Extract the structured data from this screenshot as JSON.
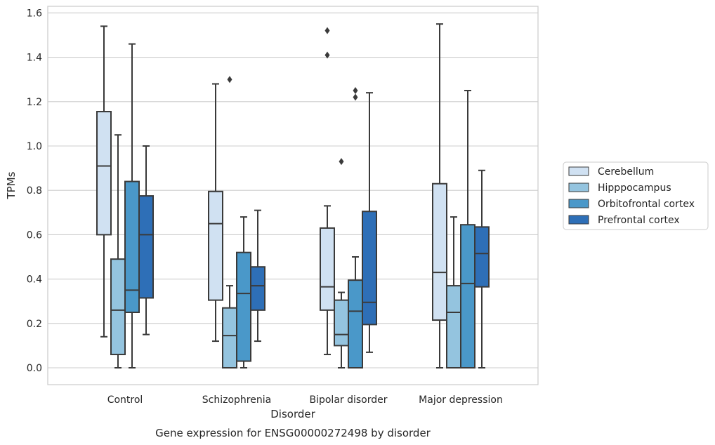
{
  "chart_data": {
    "type": "box",
    "title": "Gene expression for ENSG00000272498 by disorder",
    "xlabel": "Disorder",
    "ylabel": "TPMs",
    "ylim": [
      -0.075,
      1.64
    ],
    "yticks": [
      "0.0",
      "0.2",
      "0.4",
      "0.6",
      "0.8",
      "1.0",
      "1.2",
      "1.4",
      "1.6"
    ],
    "grid": true,
    "legend_position": "right",
    "categories": [
      "Control",
      "Schizophrenia",
      "Bipolar disorder",
      "Major depression"
    ],
    "series": [
      {
        "name": "Cerebellum",
        "color": "#d0e1f2",
        "boxes": [
          {
            "whislo": 0.14,
            "q1": 0.6,
            "med": 0.91,
            "q3": 1.155,
            "whishi": 1.54,
            "fliers": []
          },
          {
            "whislo": 0.12,
            "q1": 0.305,
            "med": 0.65,
            "q3": 0.795,
            "whishi": 1.28,
            "fliers": []
          },
          {
            "whislo": 0.06,
            "q1": 0.26,
            "med": 0.365,
            "q3": 0.63,
            "whishi": 0.73,
            "fliers": [
              1.41,
              1.52
            ]
          },
          {
            "whislo": 0.0,
            "q1": 0.215,
            "med": 0.43,
            "q3": 0.83,
            "whishi": 1.55,
            "fliers": []
          }
        ]
      },
      {
        "name": "Hipppocampus",
        "color": "#94c4df",
        "boxes": [
          {
            "whislo": 0.0,
            "q1": 0.06,
            "med": 0.26,
            "q3": 0.49,
            "whishi": 1.05,
            "fliers": []
          },
          {
            "whislo": 0.0,
            "q1": 0.0,
            "med": 0.145,
            "q3": 0.27,
            "whishi": 0.37,
            "fliers": [
              1.3
            ]
          },
          {
            "whislo": 0.0,
            "q1": 0.1,
            "med": 0.15,
            "q3": 0.305,
            "whishi": 0.34,
            "fliers": [
              0.93
            ]
          },
          {
            "whislo": 0.0,
            "q1": 0.0,
            "med": 0.25,
            "q3": 0.37,
            "whishi": 0.68,
            "fliers": []
          }
        ]
      },
      {
        "name": "Orbitofrontal cortex",
        "color": "#4a98c9",
        "boxes": [
          {
            "whislo": 0.0,
            "q1": 0.25,
            "med": 0.35,
            "q3": 0.84,
            "whishi": 1.46,
            "fliers": []
          },
          {
            "whislo": 0.0,
            "q1": 0.03,
            "med": 0.335,
            "q3": 0.52,
            "whishi": 0.68,
            "fliers": []
          },
          {
            "whislo": 0.0,
            "q1": 0.0,
            "med": 0.255,
            "q3": 0.395,
            "whishi": 0.5,
            "fliers": [
              1.22,
              1.25
            ]
          },
          {
            "whislo": 0.0,
            "q1": 0.0,
            "med": 0.38,
            "q3": 0.645,
            "whishi": 1.25,
            "fliers": []
          }
        ]
      },
      {
        "name": "Prefrontal cortex",
        "color": "#2e6fb7",
        "boxes": [
          {
            "whislo": 0.15,
            "q1": 0.315,
            "med": 0.6,
            "q3": 0.775,
            "whishi": 1.0,
            "fliers": []
          },
          {
            "whislo": 0.12,
            "q1": 0.26,
            "med": 0.37,
            "q3": 0.455,
            "whishi": 0.71,
            "fliers": []
          },
          {
            "whislo": 0.07,
            "q1": 0.195,
            "med": 0.295,
            "q3": 0.705,
            "whishi": 1.24,
            "fliers": []
          },
          {
            "whislo": 0.0,
            "q1": 0.365,
            "med": 0.515,
            "q3": 0.635,
            "whishi": 0.89,
            "fliers": []
          }
        ]
      }
    ]
  }
}
